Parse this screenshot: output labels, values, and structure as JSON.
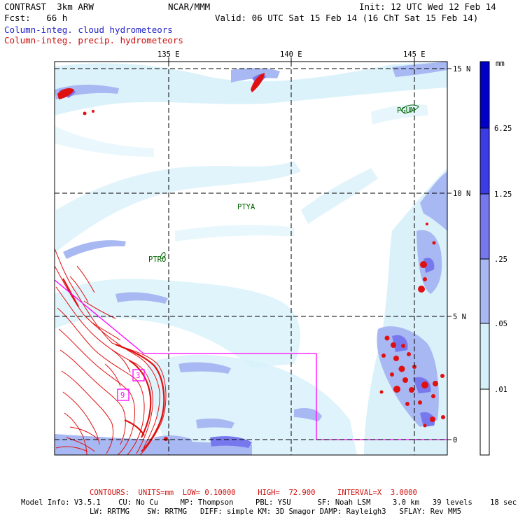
{
  "header": {
    "title": "CONTRAST  3km ARW",
    "org": "NCAR/MMM",
    "init": "Init: 12 UTC Wed 12 Feb 14",
    "fcst": "Fcst:   66 h",
    "valid": "Valid: 06 UTC Sat 15 Feb 14 (16 ChT Sat 15 Feb 14)",
    "field1": "Column-integ. cloud hydrometeors",
    "field2": "Column-integ. precip. hydrometeors"
  },
  "map": {
    "lon_labels": [
      "135 E",
      "140 E",
      "145 E"
    ],
    "lat_labels": [
      "15 N",
      "10 N",
      "5 N",
      "0"
    ],
    "stations": [
      "PGUM",
      "PTYA",
      "PTRO"
    ],
    "contour_labels": [
      "3",
      "9"
    ]
  },
  "legend": {
    "units": "mm",
    "levels": [
      "6.25",
      "1.25",
      ".25",
      ".05",
      ".01"
    ],
    "colors": [
      "#0000c8",
      "#3c3ce6",
      "#7878ee",
      "#a8b8f2",
      "#d6f0fa",
      "#ffffff"
    ]
  },
  "footer": {
    "contours": "CONTOURS:  UNITS=mm  LOW= 0.10000     HIGH=  72.900     INTERVAL=X  3.0000",
    "model1": "Model Info: V3.5.1    CU: No Cu     MP: Thompson     PBL: YSU      SF: Noah LSM     3.0 km   39 levels    18 sec",
    "model2": "LW: RRTMG    SW: RRTMG   DIFF: simple KM: 3D Smagor DAMP: Rayleigh3   SFLAY: Rev MM5"
  },
  "colors": {
    "precip": "#e01010",
    "box": "#ff00ff",
    "station": "#006400"
  }
}
